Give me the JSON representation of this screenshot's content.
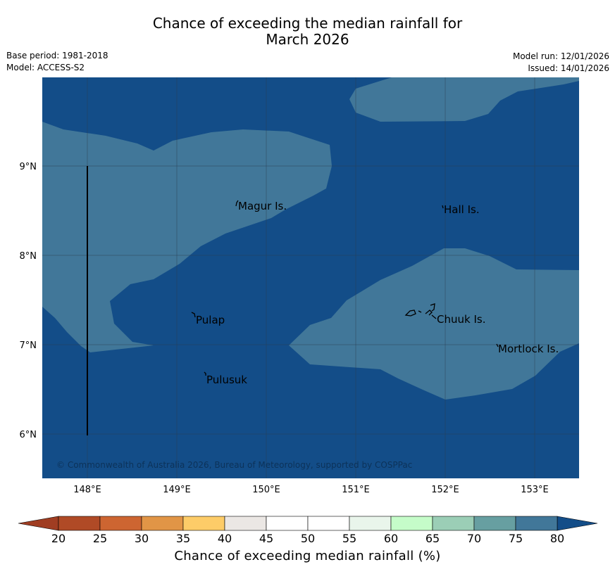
{
  "title": {
    "line1": "Chance of exceeding the median rainfall for",
    "line2": "March 2026"
  },
  "meta": {
    "base_period": "Base period: 1981-2018",
    "model": "Model: ACCESS-S2",
    "model_run": "Model run: 12/01/2026",
    "issued": "Issued: 14/01/2026"
  },
  "map": {
    "lon_labels": [
      "148°E",
      "149°E",
      "150°E",
      "151°E",
      "152°E",
      "153°E"
    ],
    "lat_labels": [
      "9°N",
      "8°N",
      "7°N",
      "6°N"
    ],
    "places": [
      "Magur Is.",
      "Hall Is.",
      "Pulap",
      "Chuuk Is.",
      "Mortlock Is.",
      "Pulusuk"
    ],
    "copyright": "© Commonwealth of Australia 2026, Bureau of Meteorology, supported by COSPPac",
    "colors": {
      "band_75_80": "#417799",
      "band_above_80": "#134d88"
    }
  },
  "colorbar": {
    "labels": [
      "20",
      "25",
      "30",
      "35",
      "40",
      "45",
      "50",
      "55",
      "60",
      "65",
      "70",
      "75",
      "80"
    ],
    "colors": [
      "#b04a26",
      "#cd6531",
      "#e19546",
      "#fdcc68",
      "#ebe7e4",
      "#ffffff",
      "#ffffff",
      "#e9f5eb",
      "#c5fcc9",
      "#9bceb6",
      "#679fa1",
      "#417799"
    ],
    "under_color": "#a03d22",
    "over_color": "#134d88",
    "axis_label": "Chance of exceeding median rainfall (%)"
  }
}
